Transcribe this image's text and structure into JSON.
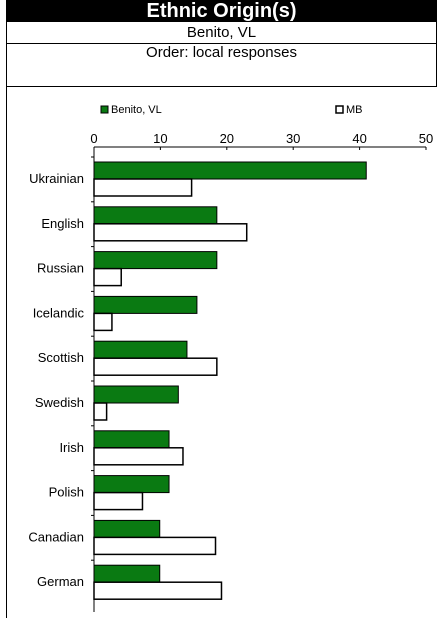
{
  "header": {
    "title": "Ethnic Origin(s)",
    "subtitle": "Benito, VL",
    "order": "Order: local responses"
  },
  "colors": {
    "series_primary": "#0a7a12",
    "series_secondary": "#ffffff",
    "outline": "#000000"
  },
  "chart_data": {
    "type": "bar",
    "orientation": "horizontal",
    "categories": [
      "Ukrainian",
      "English",
      "Russian",
      "Icelandic",
      "Scottish",
      "Swedish",
      "Irish",
      "Polish",
      "Canadian",
      "German"
    ],
    "series": [
      {
        "name": "Benito, VL",
        "values": [
          41,
          18.5,
          18.5,
          15.5,
          14,
          12.7,
          11.3,
          11.3,
          9.9,
          9.9
        ]
      },
      {
        "name": "MB",
        "values": [
          14.7,
          23,
          4.1,
          2.7,
          18.5,
          1.9,
          13.4,
          7.3,
          18.3,
          19.2
        ]
      }
    ],
    "ticks": [
      "0",
      "10",
      "20",
      "30",
      "40",
      "50"
    ],
    "xlim": [
      0,
      50
    ],
    "legend_placement": "top",
    "grid": false
  }
}
